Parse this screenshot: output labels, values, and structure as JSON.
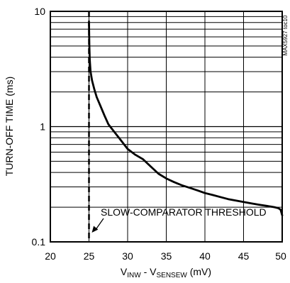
{
  "chart_data": {
    "type": "line",
    "title": "",
    "ylabel": "TURN-OFF TIME (ms)",
    "xlabel": {
      "part1_main": "V",
      "part1_sub": "INW",
      "separator": " - V",
      "part2_sub": "SENSEW",
      "units": " (mV)"
    },
    "x_ticks": [
      "20",
      "25",
      "30",
      "35",
      "40",
      "45",
      "50"
    ],
    "y_ticks": [
      "0.1",
      "1",
      "10"
    ],
    "xlim": [
      20,
      50
    ],
    "ylim": [
      0.1,
      10
    ],
    "y_scale": "log",
    "grid": true,
    "annotation": {
      "text": "SLOW-COMPARATOR THRESHOLD",
      "threshold_x": 25
    },
    "watermark": "MAX5927 toc10",
    "series": [
      {
        "values_x": [
          25.0,
          25.05,
          25.1,
          25.2,
          25.4,
          25.7,
          26.0,
          26.5,
          27.0,
          27.5,
          28.0,
          29.0,
          30.0,
          31.0,
          32.0,
          33.0,
          34.0,
          35.0,
          36.0,
          37.0,
          38.0,
          39.0,
          40.0,
          41.0,
          42.0,
          43.0,
          44.0,
          45.0,
          46.0,
          47.0,
          48.0,
          49.0,
          49.5,
          49.8,
          50.0
        ],
        "values_y": [
          8.0,
          5.0,
          3.8,
          3.0,
          2.5,
          2.1,
          1.8,
          1.5,
          1.25,
          1.05,
          0.95,
          0.78,
          0.64,
          0.57,
          0.52,
          0.45,
          0.39,
          0.355,
          0.33,
          0.31,
          0.295,
          0.28,
          0.265,
          0.255,
          0.245,
          0.235,
          0.228,
          0.222,
          0.216,
          0.21,
          0.205,
          0.2,
          0.196,
          0.19,
          0.17
        ]
      }
    ]
  }
}
